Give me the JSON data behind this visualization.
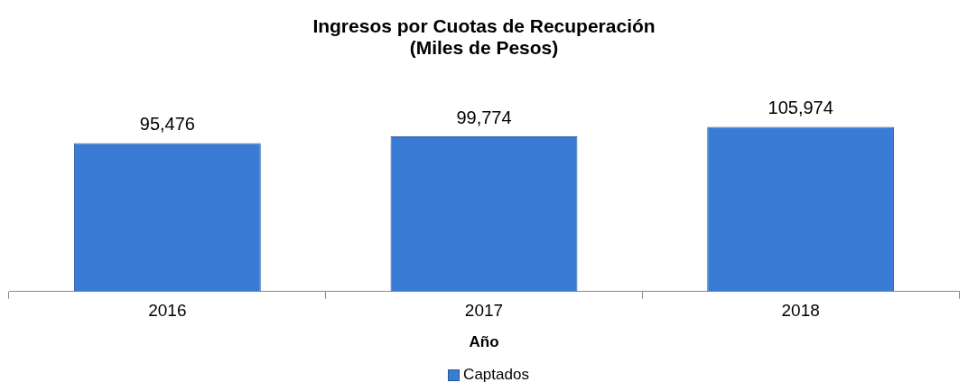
{
  "chart_data": {
    "type": "bar",
    "title": "Ingresos por Cuotas de Recuperación\n(Miles de Pesos)",
    "xlabel": "Año",
    "categories": [
      "2016",
      "2017",
      "2018"
    ],
    "series": [
      {
        "name": "Captados",
        "color": "#3a7bd5",
        "values": [
          95476,
          99774,
          105974
        ],
        "value_labels": [
          "95,476",
          "99,774",
          "105,974"
        ]
      }
    ],
    "legend": "bottom",
    "grid": false
  }
}
